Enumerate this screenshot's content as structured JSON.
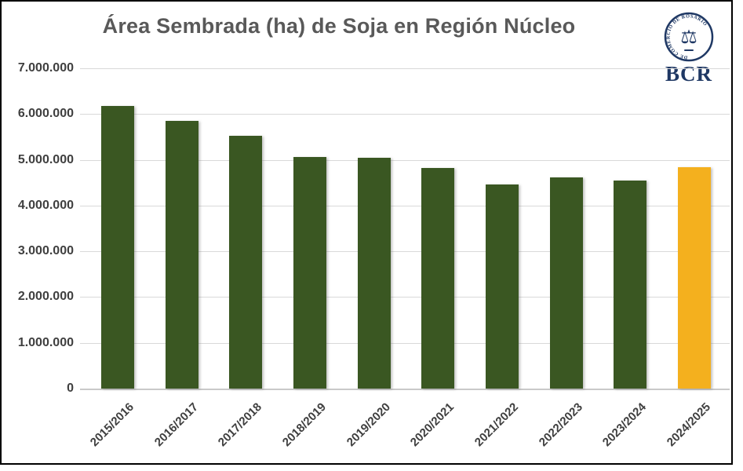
{
  "page": {
    "background": "#ffffff",
    "frame_border_color": "#000000"
  },
  "header": {
    "logo": {
      "seal_text": "BOLSA DE COMERCIO DE ROSARIO",
      "abbr": "BCR",
      "color": "#1F3864",
      "scales_icon": "⚖"
    }
  },
  "chart_data": {
    "type": "bar",
    "title": "Área Sembrada (ha) de Soja en Región Núcleo",
    "title_color": "#595959",
    "categories": [
      "2015/2016",
      "2016/2017",
      "2017/2018",
      "2018/2019",
      "2019/2020",
      "2020/2021",
      "2021/2022",
      "2022/2023",
      "2023/2024",
      "2024/2025"
    ],
    "values": [
      6170000,
      5850000,
      5520000,
      5060000,
      5040000,
      4820000,
      4470000,
      4620000,
      4550000,
      4840000
    ],
    "xlabel": "",
    "ylabel": "",
    "ylim": [
      0,
      7000000
    ],
    "y_tick_labels": [
      "7.000.000",
      "6.000.000",
      "5.000.000",
      "4.000.000",
      "3.000.000",
      "2.000.000",
      "1.000.000",
      "0"
    ],
    "grid": true,
    "legend": false,
    "bar_color_default": "#3A5722",
    "bar_color_highlight": "#F4B01E",
    "highlight_index": 9,
    "axis_label_color": "#3F3F3F",
    "gridline_color": "#D9D9D9"
  }
}
